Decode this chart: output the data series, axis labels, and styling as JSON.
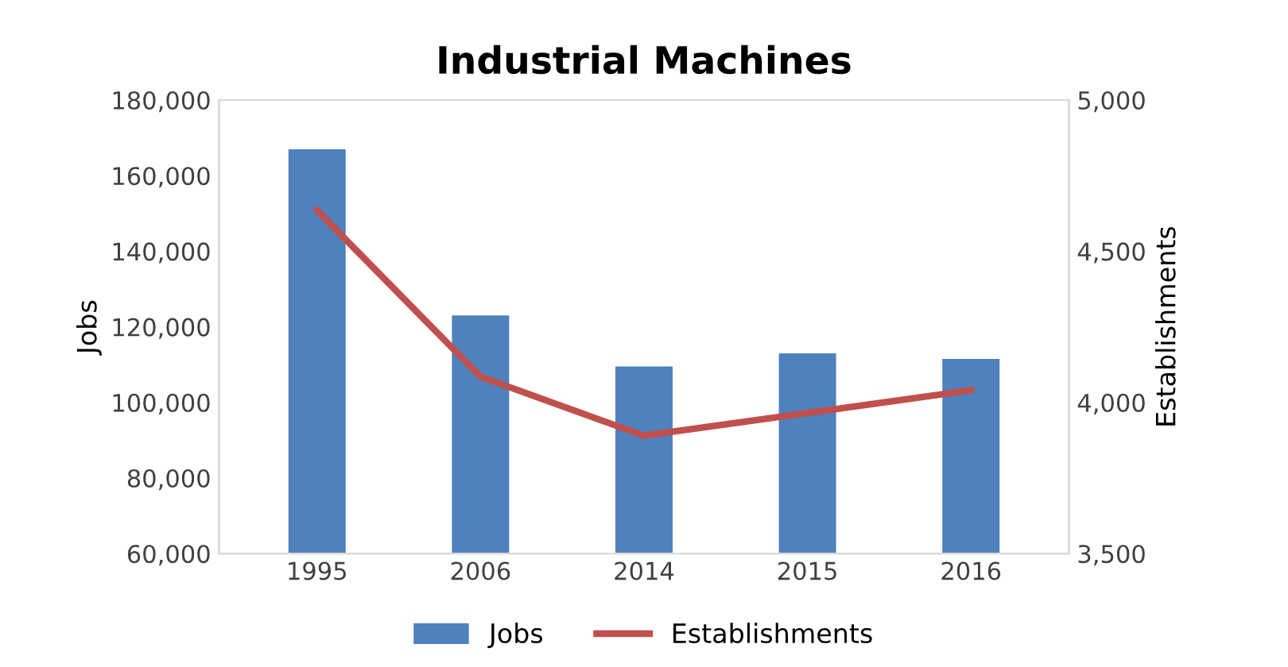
{
  "chart_data": {
    "type": "bar",
    "title": "Industrial Machines",
    "ylabel": "Jobs",
    "y2label": "Establishments",
    "categories": [
      "1995",
      "2006",
      "2014",
      "2015",
      "2016"
    ],
    "series": [
      {
        "name": "Jobs",
        "color": "#4f81bd",
        "values": [
          167000,
          123000,
          109500,
          113000,
          111500
        ]
      },
      {
        "name": "Establishments",
        "type": "line",
        "axis": "y2",
        "color": "#c0504d",
        "values": [
          4635,
          4085,
          3890,
          3965,
          4040
        ]
      }
    ],
    "ylim": [
      60000,
      180000
    ],
    "yticks": [
      {
        "value": 60000,
        "label": "60,000"
      },
      {
        "value": 80000,
        "label": "80,000"
      },
      {
        "value": 100000,
        "label": "100,000"
      },
      {
        "value": 120000,
        "label": "120,000"
      },
      {
        "value": 140000,
        "label": "140,000"
      },
      {
        "value": 160000,
        "label": "160,000"
      },
      {
        "value": 180000,
        "label": "180,000"
      }
    ],
    "y2lim": [
      3500,
      5000
    ],
    "y2ticks": [
      {
        "value": 3500,
        "label": "3,500"
      },
      {
        "value": 4000,
        "label": "4,000"
      },
      {
        "value": 4500,
        "label": "4,500"
      },
      {
        "value": 5000,
        "label": "5,000"
      }
    ],
    "legend": "bottom",
    "marker": "none",
    "line_style": "solid",
    "grid": false
  }
}
